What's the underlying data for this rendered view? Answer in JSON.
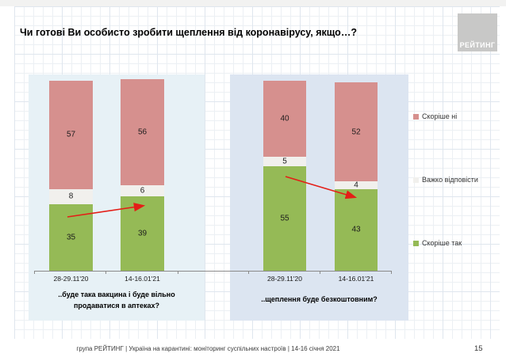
{
  "title": "Чи готові Ви особисто зробити щеплення від коронавірусу, якщо…?",
  "logo_text": "РЕЙТИНГ",
  "legend": [
    {
      "label": "Скоріше ні",
      "color": "#d6908e"
    },
    {
      "label": "Важко відповісти",
      "color": "#f1f0ed"
    },
    {
      "label": "Скоріше так",
      "color": "#95ba56"
    }
  ],
  "colors": {
    "no": "#d6908e",
    "hard_to_say": "#f1f0ed",
    "yes": "#95ba56",
    "arrow": "#e41e17",
    "panel_left_bg": "#e7f1f6",
    "panel_right_bg": "#dce5f1"
  },
  "chart_data": [
    {
      "type": "bar",
      "stacked": true,
      "question": "..буде така вакцина і буде вільно продаватися в аптеках?",
      "categories": [
        "28-29.11'20",
        "14-16.01'21"
      ],
      "series": [
        {
          "name": "Скоріше так",
          "color": "#95ba56",
          "values": [
            35,
            39
          ]
        },
        {
          "name": "Важко відповісти",
          "color": "#f1f0ed",
          "values": [
            8,
            6
          ]
        },
        {
          "name": "Скоріше ні",
          "color": "#d6908e",
          "values": [
            57,
            56
          ]
        }
      ],
      "ylim": [
        0,
        100
      ],
      "grid": false,
      "trend_arrow": "up"
    },
    {
      "type": "bar",
      "stacked": true,
      "question": "..щеплення буде безкоштовним?",
      "categories": [
        "28-29.11'20",
        "14-16.01'21"
      ],
      "series": [
        {
          "name": "Скоріше так",
          "color": "#95ba56",
          "values": [
            55,
            43
          ]
        },
        {
          "name": "Важко відповісти",
          "color": "#f1f0ed",
          "values": [
            5,
            4
          ]
        },
        {
          "name": "Скоріше ні",
          "color": "#d6908e",
          "values": [
            40,
            52
          ]
        }
      ],
      "ylim": [
        0,
        100
      ],
      "grid": false,
      "trend_arrow": "down"
    }
  ],
  "footer": {
    "text": "група РЕЙТИНГ | Україна на карантині: моніторинг суспільних настроїв | 14-16 січня 2021",
    "page": "15"
  }
}
